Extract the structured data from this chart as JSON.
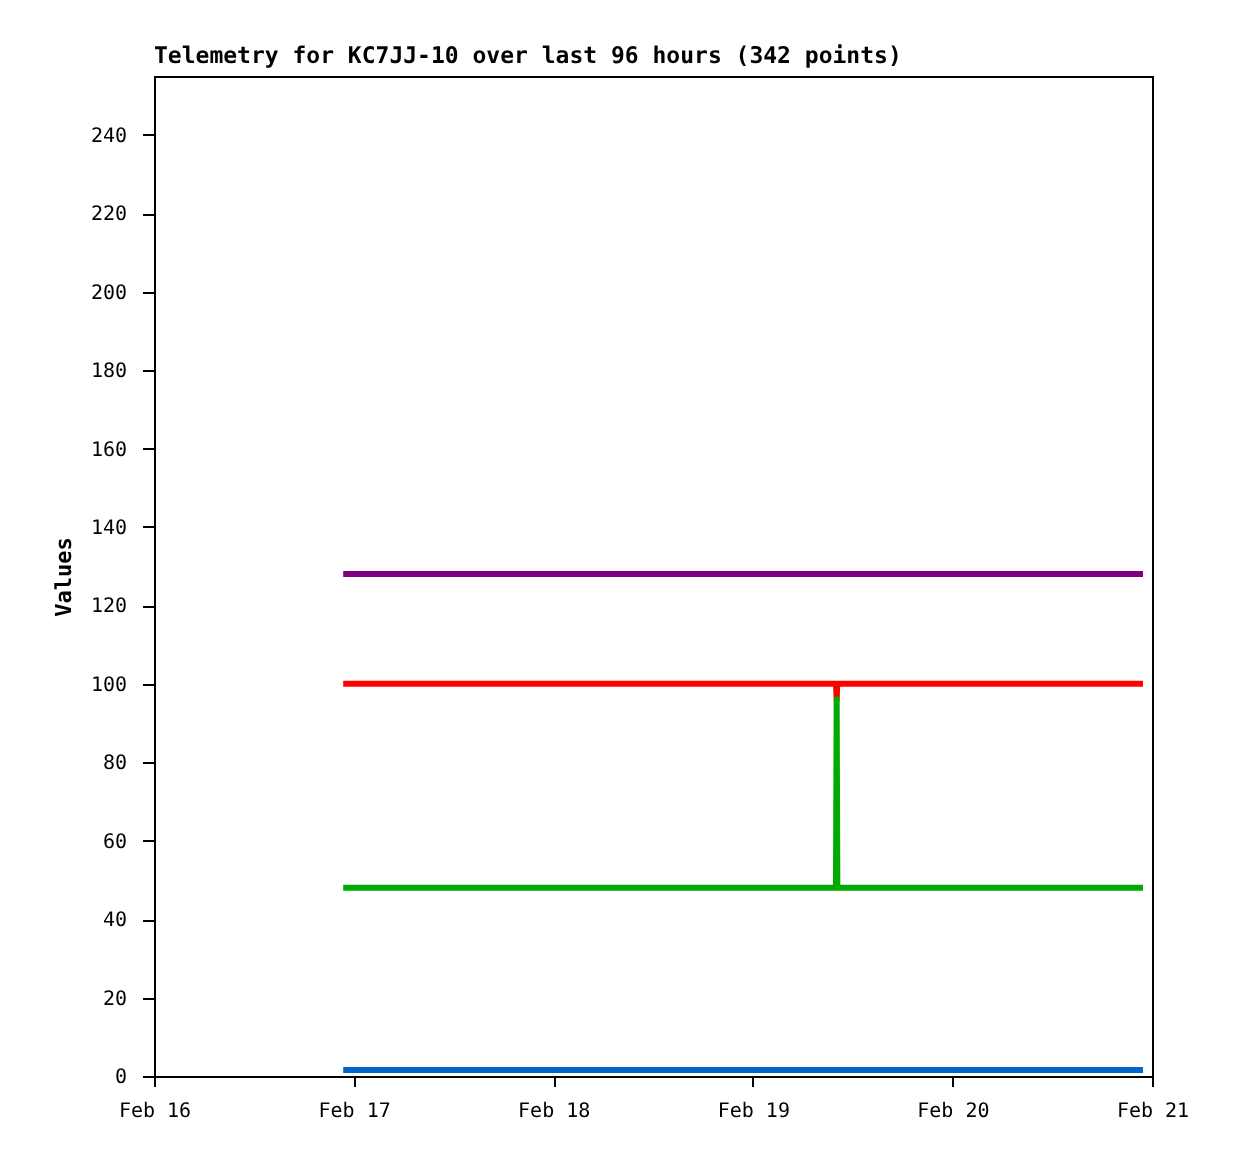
{
  "chart_data": {
    "type": "line",
    "title": "Telemetry for KC7JJ-10 over last 96 hours (342 points)",
    "ylabel": "Values",
    "x": [
      "--02-16T22:45",
      "--02-19T10:00",
      "--02-19T10:05",
      "--02-19T10:10",
      "--02-20T22:55"
    ],
    "series": [
      {
        "color": "#800080",
        "values": [
          128,
          128,
          128,
          128,
          128
        ]
      },
      {
        "color": "#ff0000",
        "values": [
          100,
          100,
          96,
          100,
          100
        ]
      },
      {
        "color": "#00aa00",
        "values": [
          48,
          48,
          96,
          48,
          48
        ]
      },
      {
        "color": "#0066cc",
        "values": [
          1.5,
          1.5,
          1.5,
          1.5,
          1.5
        ]
      }
    ],
    "xlim": [
      "--02-16",
      "--02-21"
    ],
    "xticks": [
      {
        "value": "--02-16",
        "label": "Feb 16"
      },
      {
        "value": "--02-17",
        "label": "Feb 17"
      },
      {
        "value": "--02-18",
        "label": "Feb 18"
      },
      {
        "value": "--02-19",
        "label": "Feb 19"
      },
      {
        "value": "--02-20",
        "label": "Feb 20"
      },
      {
        "value": "--02-21",
        "label": "Feb 21"
      }
    ],
    "ylim": [
      0,
      255
    ],
    "yticks": [
      0,
      20,
      40,
      60,
      80,
      100,
      120,
      140,
      160,
      180,
      200,
      220,
      240
    ],
    "line_style": "solid",
    "grid": false,
    "legend": false
  }
}
